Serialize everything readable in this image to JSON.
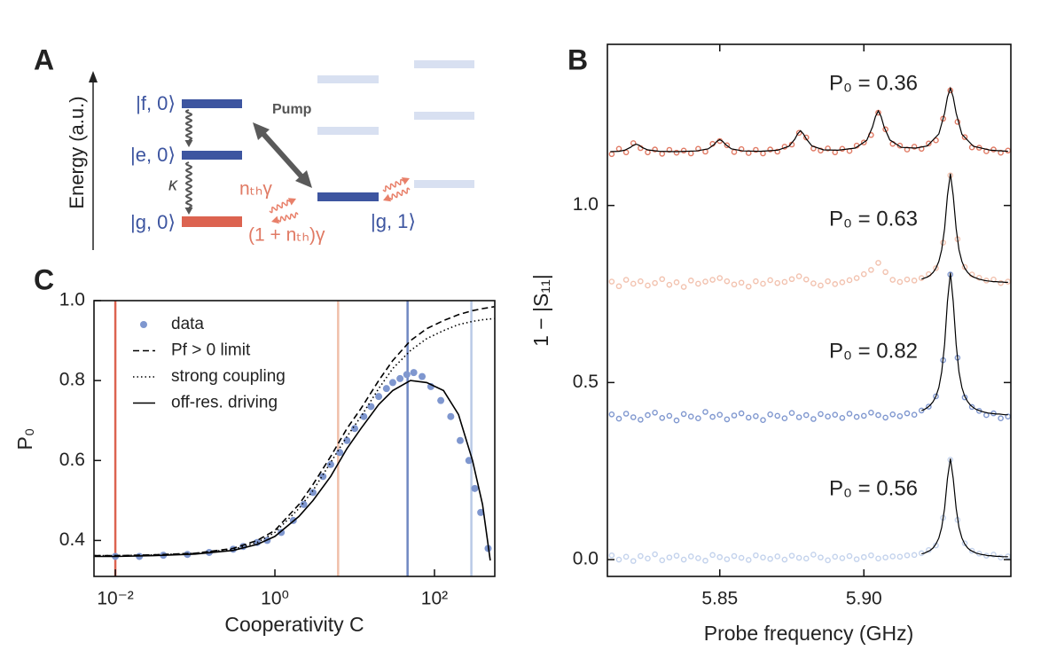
{
  "diagram": {
    "label": "A",
    "axis": "Energy (a.u.)",
    "states": {
      "f0": "|f, 0⟩",
      "e0": "|e, 0⟩",
      "g0": "|g, 0⟩",
      "g1": "|g, 1⟩"
    },
    "kappa": "κ",
    "pump": "Pump",
    "excite": "nₜₕγ",
    "decay": "(1 + nₜₕ)γ"
  },
  "chart_data": [
    {
      "type": "line",
      "panel_label": "C",
      "xlabel": "Cooperativity C",
      "ylabel": "P₀",
      "xscale": "log",
      "xlim": [
        0.0054,
        570
      ],
      "ylim": [
        0.31,
        1.0
      ],
      "xticks": [
        {
          "value": 0.01,
          "label": "10⁻²"
        },
        {
          "value": 1,
          "label": "10⁰"
        },
        {
          "value": 100,
          "label": "10²"
        }
      ],
      "yticks": [
        0.4,
        0.6,
        0.8,
        {
          "value": 1,
          "label": "1.0"
        }
      ],
      "legend": "upper left",
      "vlines": [
        {
          "value": 0.01,
          "color": "#dc6350"
        },
        {
          "value": 6.2,
          "color": "#f0bfa9"
        },
        {
          "value": 46,
          "color": "#7088c2"
        },
        {
          "value": 290,
          "color": "#b9cae7"
        }
      ],
      "series": [
        {
          "name": "data",
          "style": "markers",
          "color": "#7f97cf",
          "x": [
            0.01,
            0.02,
            0.04,
            0.08,
            0.15,
            0.3,
            0.4,
            0.6,
            0.8,
            1.2,
            1.7,
            2.3,
            3,
            4,
            5,
            6.5,
            8,
            10,
            13,
            16,
            20,
            25,
            30,
            37,
            45,
            55,
            70,
            90,
            120,
            160,
            210,
            270,
            320,
            380,
            470
          ],
          "values": [
            0.36,
            0.36,
            0.363,
            0.365,
            0.37,
            0.378,
            0.385,
            0.395,
            0.4,
            0.42,
            0.45,
            0.49,
            0.52,
            0.56,
            0.59,
            0.62,
            0.65,
            0.68,
            0.71,
            0.735,
            0.76,
            0.78,
            0.795,
            0.805,
            0.815,
            0.82,
            0.81,
            0.785,
            0.75,
            0.71,
            0.65,
            0.6,
            0.53,
            0.47,
            0.38
          ]
        },
        {
          "name": "Pf > 0 limit",
          "style": "dashed",
          "color": "#000000",
          "x": [
            0.0055,
            0.01,
            0.03,
            0.1,
            0.3,
            0.6,
            1,
            2,
            3,
            5,
            8,
            12,
            20,
            30,
            50,
            80,
            130,
            200,
            300,
            400,
            500,
            560
          ],
          "values": [
            0.362,
            0.362,
            0.364,
            0.368,
            0.38,
            0.4,
            0.425,
            0.49,
            0.54,
            0.61,
            0.68,
            0.73,
            0.8,
            0.85,
            0.9,
            0.93,
            0.95,
            0.965,
            0.975,
            0.98,
            0.983,
            0.985
          ]
        },
        {
          "name": "strong coupling",
          "style": "dotted",
          "color": "#000000",
          "x": [
            0.0055,
            0.01,
            0.03,
            0.1,
            0.3,
            0.6,
            1,
            2,
            3,
            5,
            8,
            12,
            20,
            30,
            50,
            80,
            130,
            200,
            300,
            400,
            500,
            560
          ],
          "values": [
            0.362,
            0.362,
            0.364,
            0.368,
            0.378,
            0.395,
            0.42,
            0.48,
            0.525,
            0.595,
            0.66,
            0.71,
            0.78,
            0.83,
            0.875,
            0.905,
            0.925,
            0.94,
            0.948,
            0.952,
            0.954,
            0.955
          ]
        },
        {
          "name": "off-res. driving",
          "style": "solid",
          "color": "#000000",
          "x": [
            0.0055,
            0.01,
            0.03,
            0.1,
            0.3,
            0.6,
            1,
            2,
            3,
            5,
            8,
            12,
            20,
            30,
            50,
            80,
            130,
            200,
            300,
            400,
            500
          ],
          "values": [
            0.36,
            0.36,
            0.362,
            0.366,
            0.375,
            0.39,
            0.41,
            0.46,
            0.5,
            0.56,
            0.63,
            0.68,
            0.74,
            0.775,
            0.8,
            0.795,
            0.775,
            0.715,
            0.6,
            0.49,
            0.35
          ]
        }
      ]
    },
    {
      "type": "scatter",
      "panel_label": "B",
      "xlabel": "Probe frequency (GHz)",
      "ylabel": "1 − |S₁₁|",
      "xlim": [
        5.811,
        5.951
      ],
      "ylim": [
        -0.0475,
        1.455
      ],
      "mirror_ticks": true,
      "xticks": [
        5.85,
        {
          "value": 5.9,
          "label": "5.90"
        }
      ],
      "yticks": [
        {
          "value": 0,
          "label": "0.0"
        },
        0.5,
        {
          "value": 1,
          "label": "1.0"
        }
      ],
      "fit_color": "#000000",
      "x": [
        5.8125,
        5.815,
        5.8175,
        5.82,
        5.8225,
        5.825,
        5.8275,
        5.83,
        5.8325,
        5.835,
        5.8375,
        5.84,
        5.8425,
        5.845,
        5.8475,
        5.85,
        5.8525,
        5.855,
        5.8575,
        5.86,
        5.8625,
        5.865,
        5.8675,
        5.87,
        5.8725,
        5.875,
        5.8775,
        5.88,
        5.8825,
        5.885,
        5.8875,
        5.89,
        5.8925,
        5.895,
        5.8975,
        5.9,
        5.9025,
        5.905,
        5.9075,
        5.91,
        5.9125,
        5.915,
        5.9175,
        5.92,
        5.9225,
        5.925,
        5.9275,
        5.93,
        5.9325,
        5.935,
        5.9375,
        5.94,
        5.9425,
        5.945,
        5.9475,
        5.95
      ],
      "series": [
        {
          "label": "P₀ = 0.36",
          "color": "#e07a64",
          "values": [
            1.145,
            1.16,
            1.15,
            1.176,
            1.162,
            1.15,
            1.158,
            1.146,
            1.157,
            1.149,
            1.155,
            1.147,
            1.16,
            1.152,
            1.174,
            1.182,
            1.17,
            1.151,
            1.159,
            1.148,
            1.157,
            1.147,
            1.158,
            1.152,
            1.166,
            1.172,
            1.205,
            1.192,
            1.161,
            1.155,
            1.161,
            1.15,
            1.16,
            1.154,
            1.169,
            1.178,
            1.199,
            1.262,
            1.215,
            1.174,
            1.169,
            1.158,
            1.166,
            1.16,
            1.175,
            1.184,
            1.245,
            1.325,
            1.236,
            1.193,
            1.164,
            1.163,
            1.153,
            1.158,
            1.149,
            1.155
          ],
          "fit_x": [
            5.812,
            5.815,
            5.817,
            5.819,
            5.82,
            5.821,
            5.822,
            5.823,
            5.825,
            5.829,
            5.835,
            5.842,
            5.846,
            5.848,
            5.849,
            5.85,
            5.851,
            5.852,
            5.854,
            5.858,
            5.864,
            5.87,
            5.874,
            5.876,
            5.877,
            5.878,
            5.879,
            5.88,
            5.882,
            5.886,
            5.891,
            5.897,
            5.901,
            5.903,
            5.904,
            5.905,
            5.906,
            5.907,
            5.909,
            5.913,
            5.918,
            5.922,
            5.926,
            5.928,
            5.929,
            5.93,
            5.931,
            5.932,
            5.934,
            5.938,
            5.944,
            5.95
          ],
          "fit_values": [
            1.152,
            1.153,
            1.156,
            1.164,
            1.17,
            1.173,
            1.17,
            1.164,
            1.157,
            1.153,
            1.152,
            1.154,
            1.16,
            1.172,
            1.181,
            1.186,
            1.181,
            1.172,
            1.16,
            1.154,
            1.153,
            1.156,
            1.167,
            1.187,
            1.202,
            1.211,
            1.202,
            1.188,
            1.168,
            1.157,
            1.156,
            1.162,
            1.184,
            1.222,
            1.251,
            1.267,
            1.251,
            1.222,
            1.185,
            1.164,
            1.162,
            1.168,
            1.202,
            1.261,
            1.306,
            1.331,
            1.306,
            1.261,
            1.201,
            1.167,
            1.156,
            1.153
          ]
        },
        {
          "label": "P₀ = 0.63",
          "color": "#f2c2af",
          "values": [
            0.785,
            0.772,
            0.79,
            0.779,
            0.786,
            0.774,
            0.781,
            0.792,
            0.776,
            0.783,
            0.77,
            0.788,
            0.779,
            0.785,
            0.79,
            0.795,
            0.786,
            0.777,
            0.782,
            0.771,
            0.786,
            0.779,
            0.789,
            0.781,
            0.784,
            0.792,
            0.8,
            0.791,
            0.78,
            0.774,
            0.786,
            0.778,
            0.783,
            0.789,
            0.795,
            0.806,
            0.818,
            0.838,
            0.812,
            0.79,
            0.784,
            0.791,
            0.788,
            0.795,
            0.806,
            0.823,
            0.895,
            1.085,
            0.905,
            0.826,
            0.805,
            0.796,
            0.788,
            0.791,
            0.781,
            0.785
          ],
          "fit_x": [
            5.92,
            5.921,
            5.922,
            5.923,
            5.924,
            5.925,
            5.926,
            5.927,
            5.928,
            5.929,
            5.93,
            5.931,
            5.932,
            5.933,
            5.934,
            5.935,
            5.936,
            5.937,
            5.938,
            5.939,
            5.94,
            5.941,
            5.942,
            5.943,
            5.944,
            5.945,
            5.946,
            5.947,
            5.948,
            5.949,
            5.95
          ],
          "fit_values": [
            0.792,
            0.795,
            0.798,
            0.803,
            0.811,
            0.823,
            0.842,
            0.875,
            0.935,
            1.028,
            1.09,
            1.028,
            0.935,
            0.875,
            0.842,
            0.823,
            0.811,
            0.803,
            0.798,
            0.795,
            0.792,
            0.79,
            0.788,
            0.787,
            0.786,
            0.785,
            0.785,
            0.784,
            0.784,
            0.783,
            0.783
          ]
        },
        {
          "label": "P₀ = 0.82",
          "color": "#7f97cf",
          "values": [
            0.41,
            0.398,
            0.412,
            0.402,
            0.395,
            0.408,
            0.415,
            0.4,
            0.406,
            0.393,
            0.411,
            0.404,
            0.399,
            0.417,
            0.403,
            0.409,
            0.396,
            0.407,
            0.413,
            0.401,
            0.405,
            0.394,
            0.41,
            0.406,
            0.399,
            0.414,
            0.402,
            0.408,
            0.397,
            0.411,
            0.404,
            0.409,
            0.4,
            0.412,
            0.403,
            0.406,
            0.415,
            0.408,
            0.401,
            0.41,
            0.405,
            0.413,
            0.409,
            0.421,
            0.432,
            0.461,
            0.563,
            0.805,
            0.57,
            0.458,
            0.431,
            0.42,
            0.408,
            0.413,
            0.399,
            0.404
          ],
          "fit_x": [
            5.92,
            5.921,
            5.922,
            5.923,
            5.924,
            5.925,
            5.926,
            5.927,
            5.928,
            5.929,
            5.93,
            5.931,
            5.932,
            5.933,
            5.934,
            5.935,
            5.936,
            5.937,
            5.938,
            5.939,
            5.94,
            5.941,
            5.942,
            5.943,
            5.944,
            5.945,
            5.946,
            5.947,
            5.948,
            5.949,
            5.95
          ],
          "fit_values": [
            0.421,
            0.424,
            0.429,
            0.436,
            0.446,
            0.461,
            0.486,
            0.53,
            0.608,
            0.729,
            0.81,
            0.729,
            0.608,
            0.53,
            0.486,
            0.461,
            0.446,
            0.436,
            0.429,
            0.424,
            0.421,
            0.418,
            0.416,
            0.414,
            0.413,
            0.412,
            0.411,
            0.411,
            0.41,
            0.409,
            0.409
          ]
        },
        {
          "label": "P₀ = 0.56",
          "color": "#c3d2ec",
          "values": [
            0.012,
            0.0,
            0.008,
            -0.004,
            0.01,
            0.003,
            0.015,
            -0.002,
            0.006,
            0.011,
            0.0,
            0.009,
            0.004,
            -0.003,
            0.013,
            0.007,
            0.001,
            0.01,
            0.005,
            -0.001,
            0.012,
            0.006,
            0.002,
            0.009,
            0.0,
            0.011,
            0.005,
            0.003,
            0.014,
            0.006,
            -0.002,
            0.008,
            0.004,
            0.01,
            0.001,
            0.007,
            0.012,
            0.003,
            0.006,
            0.009,
            0.008,
            0.012,
            0.013,
            0.018,
            0.027,
            0.04,
            0.118,
            0.282,
            0.112,
            0.046,
            0.025,
            0.017,
            0.011,
            0.014,
            0.006,
            0.009
          ],
          "fit_x": [
            5.92,
            5.921,
            5.922,
            5.923,
            5.924,
            5.925,
            5.926,
            5.927,
            5.928,
            5.929,
            5.93,
            5.931,
            5.932,
            5.933,
            5.934,
            5.935,
            5.936,
            5.937,
            5.938,
            5.939,
            5.94,
            5.941,
            5.942,
            5.943,
            5.944,
            5.945,
            5.946,
            5.947,
            5.948,
            5.949,
            5.95
          ],
          "fit_values": [
            0.016,
            0.018,
            0.022,
            0.026,
            0.033,
            0.044,
            0.061,
            0.091,
            0.145,
            0.229,
            0.285,
            0.229,
            0.145,
            0.091,
            0.061,
            0.044,
            0.033,
            0.026,
            0.022,
            0.018,
            0.016,
            0.014,
            0.013,
            0.011,
            0.011,
            0.01,
            0.009,
            0.009,
            0.008,
            0.008,
            0.008
          ]
        }
      ]
    }
  ]
}
